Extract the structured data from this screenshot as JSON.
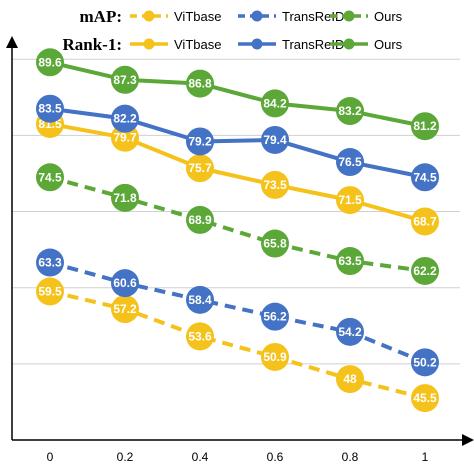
{
  "chart_data": {
    "type": "line",
    "x": [
      0,
      0.2,
      0.4,
      0.6,
      0.8,
      1
    ],
    "x_tick_labels": [
      "0",
      "0.2",
      "0.4",
      "0.6",
      "0.8",
      "1"
    ],
    "ylim": [
      40,
      92
    ],
    "grid": true,
    "legend_placement": "top",
    "legend_groups": [
      {
        "title": "mAP:",
        "metric": "mAP",
        "dashed": true
      },
      {
        "title": "Rank-1:",
        "metric": "Rank-1",
        "dashed": false
      }
    ],
    "series": [
      {
        "name": "ViTbase",
        "metric": "mAP",
        "dashed": true,
        "color": "#F5C21B",
        "values": [
          59.5,
          57.2,
          53.6,
          50.9,
          48,
          45.5
        ],
        "labels": [
          "59.5",
          "57.2",
          "53.6",
          "50.9",
          "48",
          "45.5"
        ]
      },
      {
        "name": "TransReID",
        "metric": "mAP",
        "dashed": true,
        "color": "#4472C4",
        "values": [
          63.3,
          60.6,
          58.4,
          56.2,
          54.2,
          50.2
        ],
        "labels": [
          "63.3",
          "60.6",
          "58.4",
          "56.2",
          "54.2",
          "50.2"
        ]
      },
      {
        "name": "Ours",
        "metric": "mAP",
        "dashed": true,
        "color": "#5BA738",
        "values": [
          74.5,
          71.8,
          68.9,
          65.8,
          63.5,
          62.2
        ],
        "labels": [
          "74.5",
          "71.8",
          "68.9",
          "65.8",
          "63.5",
          "62.2"
        ]
      },
      {
        "name": "ViTbase",
        "metric": "Rank-1",
        "dashed": false,
        "color": "#F5C21B",
        "values": [
          81.5,
          79.7,
          75.7,
          73.5,
          71.5,
          68.7
        ],
        "labels": [
          "81.5",
          "79.7",
          "75.7",
          "73.5",
          "71.5",
          "68.7"
        ]
      },
      {
        "name": "TransReID",
        "metric": "Rank-1",
        "dashed": false,
        "color": "#4472C4",
        "values": [
          83.5,
          82.2,
          79.2,
          79.4,
          76.5,
          74.5
        ],
        "labels": [
          "83.5",
          "82.2",
          "79.2",
          "79.4",
          "76.5",
          "74.5"
        ]
      },
      {
        "name": "Ours",
        "metric": "Rank-1",
        "dashed": false,
        "color": "#5BA738",
        "values": [
          89.6,
          87.3,
          86.8,
          84.2,
          83.2,
          81.2
        ],
        "labels": [
          "89.6",
          "87.3",
          "86.8",
          "84.2",
          "83.2",
          "81.2"
        ]
      }
    ]
  }
}
